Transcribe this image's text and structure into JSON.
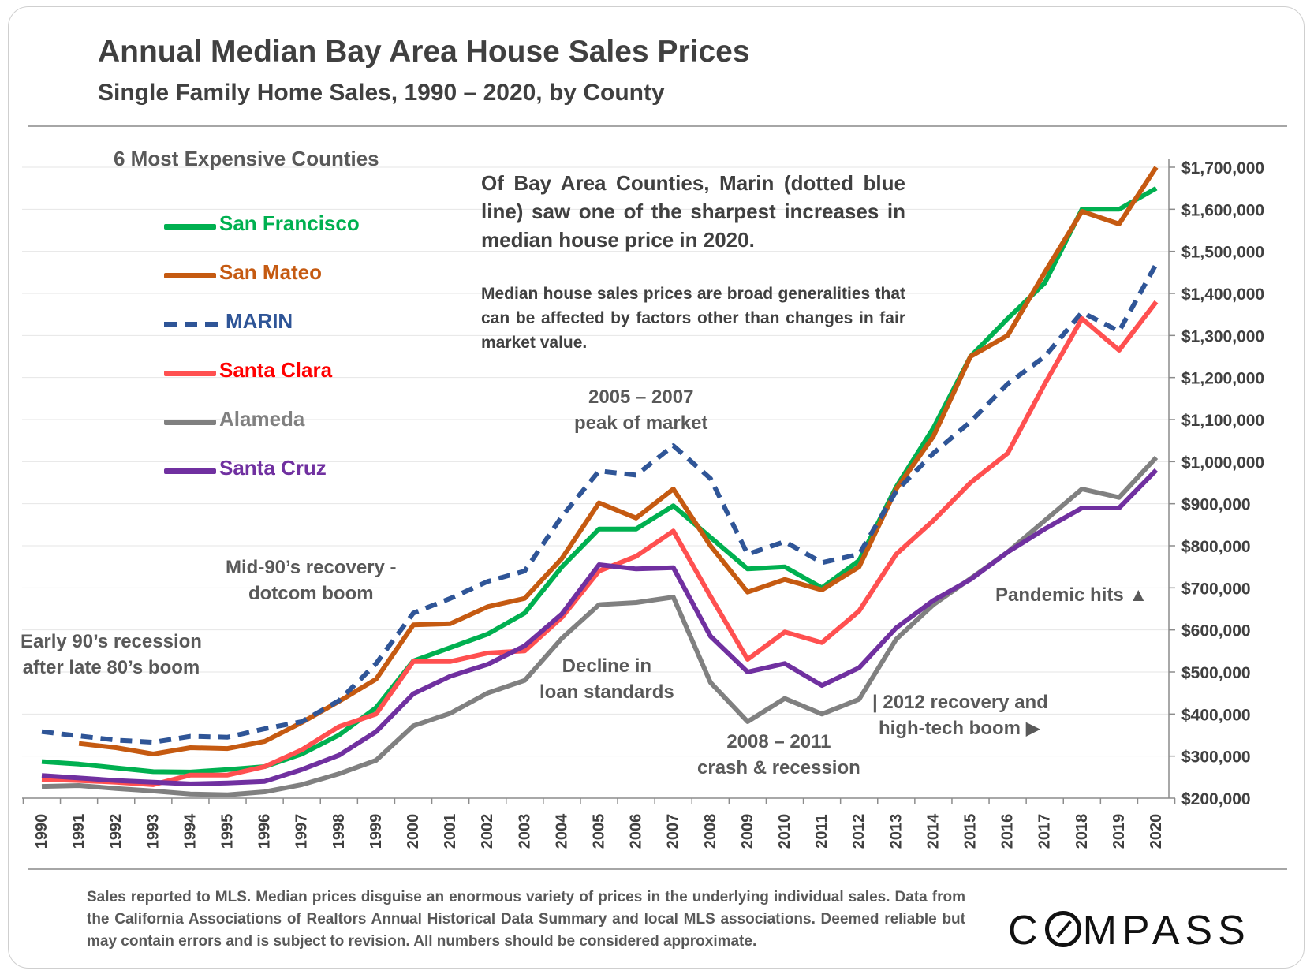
{
  "title": "Annual Median Bay Area House Sales Prices",
  "subtitle": "Single Family Home Sales, 1990 – 2020, by County",
  "legend": {
    "heading": "6 Most Expensive Counties",
    "items": [
      {
        "label": "San Francisco",
        "color": "#00b050"
      },
      {
        "label": "San Mateo",
        "color": "#c55a11"
      },
      {
        "label": "MARIN",
        "color": "#2f5597"
      },
      {
        "label": "Santa Clara",
        "color": "#ff5050"
      },
      {
        "label": "Alameda",
        "color": "#808080"
      },
      {
        "label": "Santa Cruz",
        "color": "#7030a0"
      }
    ]
  },
  "notes": {
    "main": "Of Bay Area Counties, Marin (dotted blue line) saw one of the sharpest increases in median house price in 2020.",
    "secondary": "Median house sales prices are broad generalities that can be affected by factors other than changes in fair market value."
  },
  "annotations": {
    "early90s_line1": "Early 90’s recession",
    "early90s_line2": "after late 80’s boom",
    "mid90s_line1": "Mid-90’s recovery -",
    "mid90s_line2": "dotcom boom",
    "peak_line1": "2005 – 2007",
    "peak_line2": "peak of market",
    "decline_line1": "Decline in",
    "decline_line2": "loan standards",
    "crash_line1": "2008 – 2011",
    "crash_line2": "crash & recession",
    "recovery_line1": "| 2012 recovery and",
    "recovery_line2": "high-tech boom ▶",
    "pandemic": "Pandemic hits ▲"
  },
  "footer": "Sales reported to MLS. Median prices disguise an enormous variety of prices in the underlying individual sales. Data from the California Associations of Realtors Annual Historical Data Summary and local MLS associations. Deemed reliable but may contain errors and is subject to revision. All numbers should be considered approximate.",
  "logo": {
    "before": "C",
    "after": "MPASS"
  },
  "chart_data": {
    "type": "line",
    "x": [
      1990,
      1991,
      1992,
      1993,
      1994,
      1995,
      1996,
      1997,
      1998,
      1999,
      2000,
      2001,
      2002,
      2003,
      2004,
      2005,
      2006,
      2007,
      2008,
      2009,
      2010,
      2011,
      2012,
      2013,
      2014,
      2015,
      2016,
      2017,
      2018,
      2019,
      2020
    ],
    "x_tick_labels": [
      "1990",
      "1991",
      "1992",
      "1993",
      "1994",
      "1995",
      "1996",
      "1997",
      "1998",
      "1999",
      "2000",
      "2001",
      "2002",
      "2003",
      "2004",
      "2005",
      "2006",
      "2007",
      "2008",
      "2009",
      "2010",
      "2011",
      "2012",
      "2013",
      "2014",
      "2015",
      "2016",
      "2017",
      "2018",
      "2019",
      "2020"
    ],
    "y_ticks": [
      200000,
      300000,
      400000,
      500000,
      600000,
      700000,
      800000,
      900000,
      1000000,
      1100000,
      1200000,
      1300000,
      1400000,
      1500000,
      1600000,
      1700000
    ],
    "y_tick_labels": [
      "$200,000",
      "$300,000",
      "$400,000",
      "$500,000",
      "$600,000",
      "$700,000",
      "$800,000",
      "$900,000",
      "$1,000,000",
      "$1,100,000",
      "$1,200,000",
      "$1,300,000",
      "$1,400,000",
      "$1,500,000",
      "$1,600,000",
      "$1,700,000"
    ],
    "ylim": [
      200000,
      1700000
    ],
    "y_axis_side": "right",
    "grid": true,
    "series": [
      {
        "name": "San Francisco",
        "color": "#00b050",
        "style": "solid",
        "values": [
          287000,
          281000,
          272000,
          263000,
          262000,
          268000,
          275000,
          305000,
          350000,
          415000,
          526000,
          558000,
          590000,
          640000,
          750000,
          840000,
          840000,
          895000,
          820000,
          745000,
          750000,
          700000,
          765000,
          940000,
          1080000,
          1250000,
          1340000,
          1425000,
          1600000,
          1600000,
          1650000
        ]
      },
      {
        "name": "San Mateo",
        "color": "#c55a11",
        "style": "solid",
        "values": [
          null,
          330000,
          320000,
          305000,
          320000,
          318000,
          335000,
          380000,
          430000,
          483000,
          612000,
          615000,
          655000,
          675000,
          770000,
          902000,
          866000,
          935000,
          800000,
          690000,
          720000,
          695000,
          750000,
          935000,
          1060000,
          1250000,
          1300000,
          1450000,
          1595000,
          1565000,
          1700000
        ]
      },
      {
        "name": "MARIN",
        "color": "#2f5597",
        "style": "dashed",
        "values": [
          358000,
          348000,
          338000,
          333000,
          347000,
          345000,
          365000,
          382000,
          432000,
          520000,
          640000,
          675000,
          715000,
          740000,
          870000,
          978000,
          968000,
          1038000,
          960000,
          780000,
          810000,
          760000,
          780000,
          930000,
          1020000,
          1095000,
          1185000,
          1250000,
          1355000,
          1310000,
          1470000
        ]
      },
      {
        "name": "Santa Clara",
        "color": "#ff5050",
        "style": "solid",
        "values": [
          245000,
          242000,
          238000,
          232000,
          255000,
          255000,
          275000,
          315000,
          370000,
          400000,
          525000,
          525000,
          545000,
          550000,
          630000,
          740000,
          775000,
          835000,
          680000,
          530000,
          595000,
          570000,
          645000,
          780000,
          860000,
          950000,
          1020000,
          1185000,
          1340000,
          1265000,
          1380000
        ]
      },
      {
        "name": "Alameda",
        "color": "#808080",
        "style": "solid",
        "values": [
          228000,
          230000,
          223000,
          217000,
          210000,
          208000,
          215000,
          232000,
          258000,
          290000,
          372000,
          402000,
          450000,
          480000,
          580000,
          660000,
          665000,
          678000,
          475000,
          382000,
          437000,
          400000,
          435000,
          578000,
          660000,
          722000,
          785000,
          860000,
          935000,
          915000,
          1010000
        ]
      },
      {
        "name": "Santa Cruz",
        "color": "#7030a0",
        "style": "solid",
        "values": [
          254000,
          248000,
          242000,
          238000,
          234000,
          236000,
          240000,
          268000,
          302000,
          358000,
          448000,
          490000,
          518000,
          562000,
          638000,
          755000,
          745000,
          748000,
          585000,
          500000,
          520000,
          468000,
          510000,
          605000,
          670000,
          720000,
          785000,
          840000,
          890000,
          890000,
          980000
        ]
      }
    ]
  }
}
